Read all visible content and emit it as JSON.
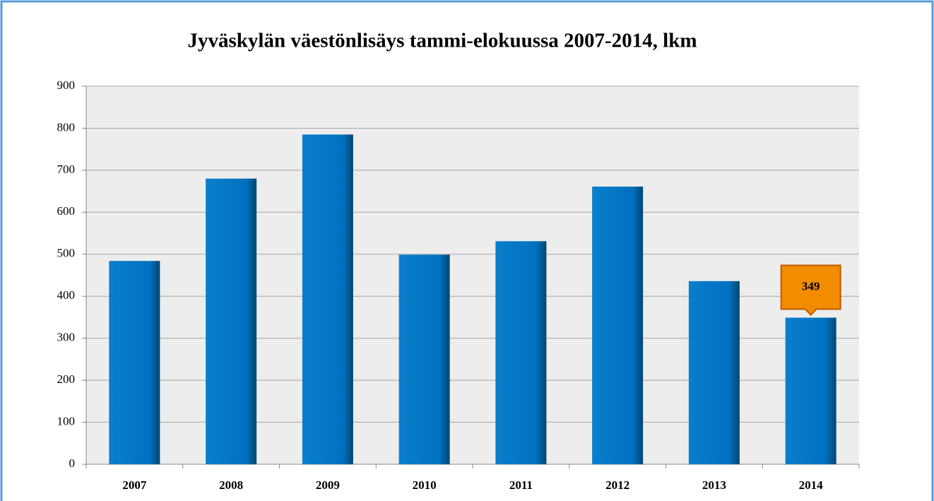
{
  "chart_data": {
    "type": "bar",
    "title": "Jyväskylän väestönlisäys tammi-elokuussa 2007-2014, lkm",
    "categories": [
      "2007",
      "2008",
      "2009",
      "2010",
      "2011",
      "2012",
      "2013",
      "2014"
    ],
    "values": [
      484,
      680,
      785,
      499,
      531,
      661,
      436,
      349
    ],
    "value_labels": [
      null,
      null,
      null,
      null,
      null,
      null,
      null,
      "349"
    ],
    "color": "#0070c0",
    "ylim": [
      0,
      900
    ],
    "yticks": [
      0,
      100,
      200,
      300,
      400,
      500,
      600,
      700,
      800,
      900
    ],
    "grid": true
  }
}
